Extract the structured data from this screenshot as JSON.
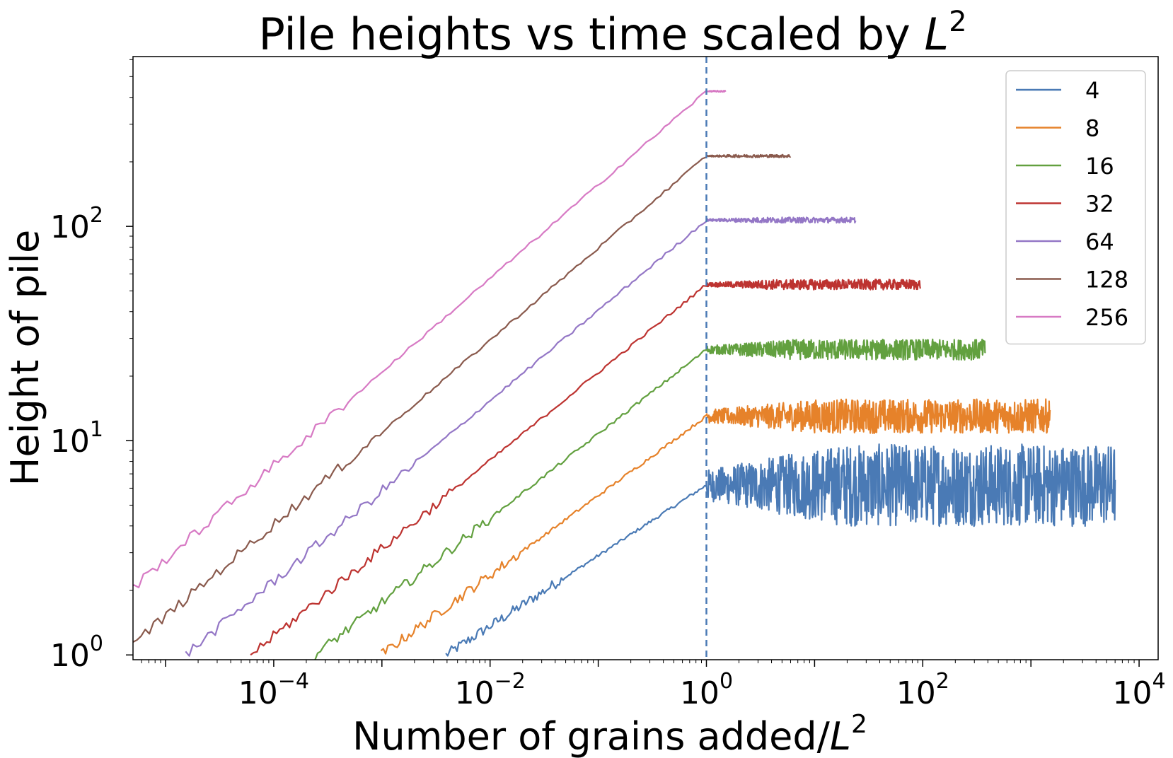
{
  "chart_data": {
    "type": "line",
    "title": "Pile heights vs time scaled by L^2",
    "title_parts": {
      "main": "Pile heights vs time scaled by ",
      "var": "L",
      "sup": "2"
    },
    "xlabel": "Number of grains added/L^2",
    "xlabel_parts": {
      "main": "Number of grains added/",
      "var": "L",
      "sup": "2"
    },
    "ylabel": "Height of pile",
    "xscale": "log",
    "yscale": "log",
    "xlim": [
      5e-06,
      15000.0
    ],
    "ylim": [
      0.95,
      620
    ],
    "x_ticks": [
      {
        "value": 0.0001,
        "base": "10",
        "exp": "−4"
      },
      {
        "value": 0.01,
        "base": "10",
        "exp": "−2"
      },
      {
        "value": 1,
        "base": "10",
        "exp": "0"
      },
      {
        "value": 100,
        "base": "10",
        "exp": "2"
      },
      {
        "value": 10000,
        "base": "10",
        "exp": "4"
      }
    ],
    "y_ticks": [
      {
        "value": 1,
        "base": "10",
        "exp": "0"
      },
      {
        "value": 10,
        "base": "10",
        "exp": "1"
      },
      {
        "value": 100,
        "base": "10",
        "exp": "2"
      }
    ],
    "vline": {
      "x": 1,
      "style": "dashed",
      "color": "#4a7ab5"
    },
    "grid": false,
    "legend_position": "top-right",
    "series": [
      {
        "name": "4",
        "color": "#4a7ab5",
        "x_start": 0.0039,
        "x_end": 6000,
        "plateau": 6.2,
        "fluct": 0.12
      },
      {
        "name": "8",
        "color": "#e6822a",
        "x_start": 0.00098,
        "x_end": 1500,
        "plateau": 13.0,
        "fluct": 0.05
      },
      {
        "name": "16",
        "color": "#62a03f",
        "x_start": 0.00024,
        "x_end": 380,
        "plateau": 26.6,
        "fluct": 0.03
      },
      {
        "name": "32",
        "color": "#bd3330",
        "x_start": 6.1e-05,
        "x_end": 95,
        "plateau": 53.5,
        "fluct": 0.015
      },
      {
        "name": "64",
        "color": "#9477c6",
        "x_start": 1.53e-05,
        "x_end": 24,
        "plateau": 107,
        "fluct": 0.008
      },
      {
        "name": "128",
        "color": "#8a5a4d",
        "x_start": 3.8e-06,
        "x_end": 6,
        "plateau": 213,
        "fluct": 0.004
      },
      {
        "name": "256",
        "color": "#d77ac4",
        "x_start": 9.5e-07,
        "x_end": 1.5,
        "plateau": 427,
        "fluct": 0.002
      }
    ]
  }
}
